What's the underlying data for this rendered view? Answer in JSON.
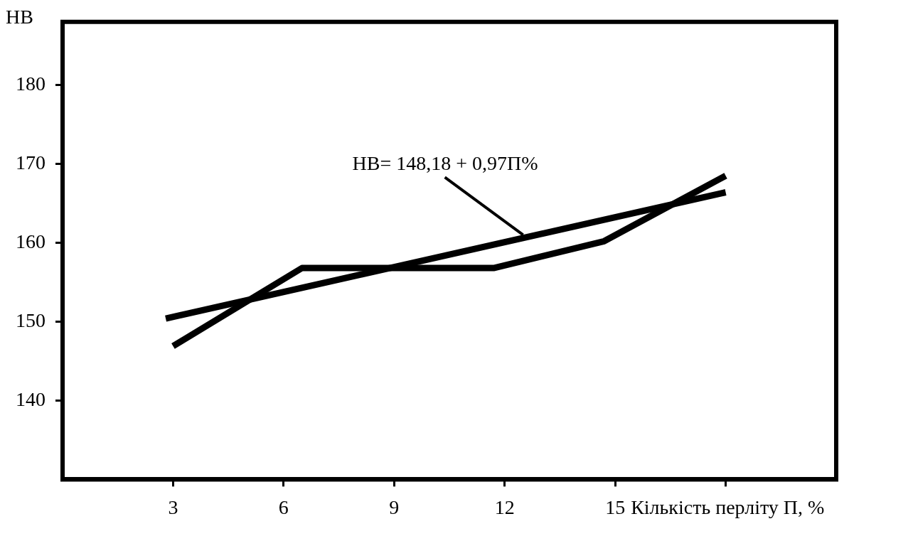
{
  "chart_data": {
    "type": "line",
    "xlabel": "Кількість перліту П, %",
    "ylabel": "HB",
    "xlim": [
      0,
      21
    ],
    "ylim": [
      130,
      188
    ],
    "xticks": [
      3,
      6,
      9,
      12,
      15,
      {
        "value": 18,
        "label": null
      }
    ],
    "yticks": [
      140,
      150,
      160,
      170,
      180
    ],
    "series": [
      {
        "color": "#000000",
        "x": [
          3,
          6.5,
          11.7,
          14.7,
          18
        ],
        "values": [
          146.9,
          156.8,
          156.8,
          160.2,
          168.5
        ]
      },
      {
        "type": "line",
        "color": "#000000",
        "x": [
          2.8,
          18
        ],
        "values": [
          150.4,
          166.4
        ]
      }
    ],
    "annotations": [
      {
        "text": "HB= 148,18 + 0,97П%",
        "x": 12.5,
        "y": 161
      }
    ],
    "grid": false,
    "legend": false,
    "marker": "none",
    "line_style": "solid"
  }
}
